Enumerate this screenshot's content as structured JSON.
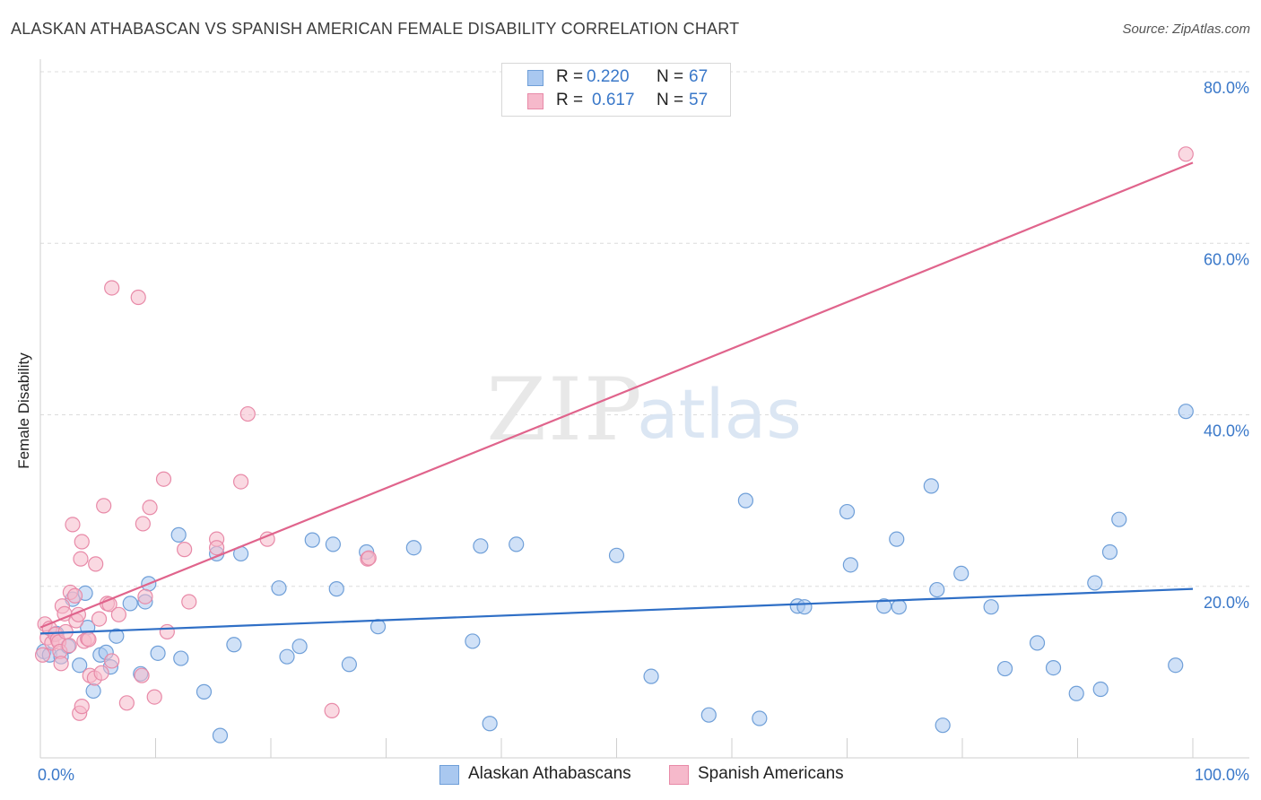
{
  "title": "ALASKAN ATHABASCAN VS SPANISH AMERICAN FEMALE DISABILITY CORRELATION CHART",
  "source": "Source: ZipAtlas.com",
  "watermark": {
    "zip": "ZIP",
    "atlas": "atlas"
  },
  "legend": {
    "r_label": "R =",
    "n_label": "N =",
    "rows": [
      {
        "r": "0.220",
        "n": "67"
      },
      {
        "r": "0.617",
        "n": "57"
      }
    ]
  },
  "bottom_legend": [
    "Alaskan Athabascans",
    "Spanish Americans"
  ],
  "colors": {
    "blue_fill": "#a9c8f0",
    "blue_stroke": "#6f9fd8",
    "blue_line": "#2f6fc6",
    "pink_fill": "#f6b9cb",
    "pink_stroke": "#e88aa8",
    "pink_line": "#e0648c",
    "tick_label": "#3a78c9",
    "grid": "#dcdcdc"
  },
  "chart_data": {
    "type": "scatter",
    "title": "ALASKAN ATHABASCAN VS SPANISH AMERICAN FEMALE DISABILITY CORRELATION CHART",
    "xlabel": "",
    "ylabel": "Female Disability",
    "xlim": [
      0,
      100
    ],
    "ylim": [
      0,
      80
    ],
    "x_tick_labels": [
      "0.0%",
      "100.0%"
    ],
    "y_ticks": [
      20,
      40,
      60,
      80
    ],
    "y_tick_labels": [
      "20.0%",
      "40.0%",
      "60.0%",
      "80.0%"
    ],
    "grid": true,
    "series": [
      {
        "name": "Alaskan Athabascans",
        "r": 0.22,
        "n": 67,
        "trend": {
          "x": [
            0,
            100
          ],
          "y": [
            14.5,
            19.7
          ]
        },
        "points": [
          [
            0.3,
            12.4
          ],
          [
            0.8,
            12.0
          ],
          [
            1.4,
            14.5
          ],
          [
            1.8,
            11.8
          ],
          [
            2.4,
            13.0
          ],
          [
            2.8,
            18.5
          ],
          [
            3.4,
            10.8
          ],
          [
            3.9,
            19.2
          ],
          [
            4.1,
            15.2
          ],
          [
            4.6,
            7.8
          ],
          [
            5.2,
            12.0
          ],
          [
            5.7,
            12.3
          ],
          [
            6.1,
            10.6
          ],
          [
            6.6,
            14.2
          ],
          [
            7.8,
            18.0
          ],
          [
            8.7,
            9.8
          ],
          [
            9.1,
            18.2
          ],
          [
            9.4,
            20.3
          ],
          [
            10.2,
            12.2
          ],
          [
            12.0,
            26.0
          ],
          [
            12.2,
            11.6
          ],
          [
            14.2,
            7.7
          ],
          [
            15.3,
            23.8
          ],
          [
            15.6,
            2.6
          ],
          [
            16.8,
            13.2
          ],
          [
            17.4,
            23.8
          ],
          [
            20.7,
            19.8
          ],
          [
            21.4,
            11.8
          ],
          [
            22.5,
            13.0
          ],
          [
            23.6,
            25.4
          ],
          [
            25.4,
            24.9
          ],
          [
            25.7,
            19.7
          ],
          [
            26.8,
            10.9
          ],
          [
            28.3,
            24.0
          ],
          [
            29.3,
            15.3
          ],
          [
            32.4,
            24.5
          ],
          [
            37.5,
            13.6
          ],
          [
            38.2,
            24.7
          ],
          [
            39.0,
            4.0
          ],
          [
            41.3,
            24.9
          ],
          [
            50.0,
            23.6
          ],
          [
            53.0,
            9.5
          ],
          [
            58.0,
            5.0
          ],
          [
            61.2,
            30.0
          ],
          [
            62.4,
            4.6
          ],
          [
            65.7,
            17.7
          ],
          [
            66.3,
            17.6
          ],
          [
            70.0,
            28.7
          ],
          [
            70.3,
            22.5
          ],
          [
            73.2,
            17.7
          ],
          [
            74.3,
            25.5
          ],
          [
            74.5,
            17.6
          ],
          [
            77.3,
            31.7
          ],
          [
            77.8,
            19.6
          ],
          [
            78.3,
            3.8
          ],
          [
            79.9,
            21.5
          ],
          [
            82.5,
            17.6
          ],
          [
            83.7,
            10.4
          ],
          [
            86.5,
            13.4
          ],
          [
            87.9,
            10.5
          ],
          [
            89.9,
            7.5
          ],
          [
            91.5,
            20.4
          ],
          [
            92.0,
            8.0
          ],
          [
            92.8,
            24.0
          ],
          [
            93.6,
            27.8
          ],
          [
            98.5,
            10.8
          ],
          [
            99.4,
            40.4
          ]
        ]
      },
      {
        "name": "Spanish Americans",
        "r": 0.617,
        "n": 57,
        "trend": {
          "x": [
            0,
            100
          ],
          "y": [
            15.2,
            69.4
          ]
        },
        "points": [
          [
            0.2,
            12.0
          ],
          [
            0.4,
            15.6
          ],
          [
            0.6,
            14.0
          ],
          [
            0.8,
            15.1
          ],
          [
            1.0,
            13.4
          ],
          [
            1.3,
            14.4
          ],
          [
            1.5,
            13.8
          ],
          [
            1.6,
            13.5
          ],
          [
            1.7,
            12.4
          ],
          [
            1.8,
            11.0
          ],
          [
            1.9,
            17.7
          ],
          [
            2.1,
            16.8
          ],
          [
            2.2,
            14.7
          ],
          [
            2.5,
            13.1
          ],
          [
            2.6,
            19.3
          ],
          [
            2.8,
            27.2
          ],
          [
            3.0,
            18.9
          ],
          [
            3.1,
            16.0
          ],
          [
            3.3,
            16.7
          ],
          [
            3.4,
            5.2
          ],
          [
            3.5,
            23.2
          ],
          [
            3.6,
            25.2
          ],
          [
            3.6,
            6.0
          ],
          [
            3.8,
            13.6
          ],
          [
            4.1,
            13.9
          ],
          [
            4.2,
            13.8
          ],
          [
            4.3,
            9.6
          ],
          [
            4.7,
            9.3
          ],
          [
            4.8,
            22.6
          ],
          [
            5.1,
            16.2
          ],
          [
            5.3,
            9.9
          ],
          [
            5.5,
            29.4
          ],
          [
            5.8,
            18.0
          ],
          [
            6.0,
            17.9
          ],
          [
            6.2,
            11.3
          ],
          [
            6.2,
            54.8
          ],
          [
            6.8,
            16.7
          ],
          [
            7.5,
            6.4
          ],
          [
            8.5,
            53.7
          ],
          [
            8.8,
            9.6
          ],
          [
            8.9,
            27.3
          ],
          [
            9.1,
            18.8
          ],
          [
            9.5,
            29.2
          ],
          [
            9.9,
            7.1
          ],
          [
            10.7,
            32.5
          ],
          [
            11.0,
            14.7
          ],
          [
            12.5,
            24.3
          ],
          [
            12.9,
            18.2
          ],
          [
            15.3,
            25.5
          ],
          [
            15.3,
            24.5
          ],
          [
            17.4,
            32.2
          ],
          [
            18.0,
            40.1
          ],
          [
            19.7,
            25.5
          ],
          [
            25.3,
            5.5
          ],
          [
            28.4,
            23.2
          ],
          [
            28.5,
            23.3
          ],
          [
            99.4,
            70.4
          ]
        ]
      }
    ]
  }
}
